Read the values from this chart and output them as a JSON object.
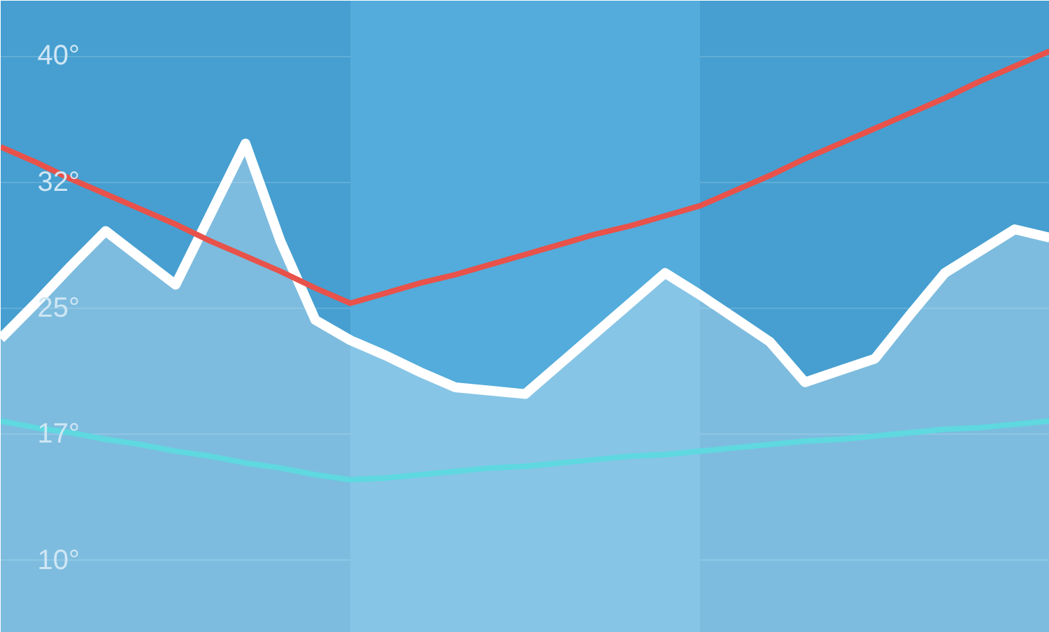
{
  "chart_data": {
    "type": "line",
    "ylim": [
      5.7,
      43.3
    ],
    "categories": [
      null,
      null,
      null,
      null,
      null,
      null,
      null,
      null,
      null,
      null,
      null,
      null,
      null,
      null,
      null,
      null,
      null,
      null,
      null,
      null,
      null,
      null,
      null,
      null,
      null,
      null,
      null,
      null,
      null,
      null,
      null
    ],
    "yticks": [
      {
        "value": 10,
        "label": "10°"
      },
      {
        "value": 17.5,
        "label": "17°"
      },
      {
        "value": 25,
        "label": "25°"
      },
      {
        "value": 32.5,
        "label": "32°"
      },
      {
        "value": 40,
        "label": "40°"
      }
    ],
    "tick_labels": "y",
    "grid": "y",
    "line_style": "solid",
    "series": [
      {
        "type": "area",
        "color": "#ffffff",
        "values": [
          23.2,
          25.3,
          27.5,
          29.6,
          28.0,
          26.4,
          30.6,
          34.8,
          29.0,
          24.3,
          23.1,
          22.2,
          21.2,
          20.3,
          20.1,
          19.9,
          21.7,
          23.5,
          25.3,
          27.1,
          25.8,
          24.4,
          23.0,
          20.6,
          21.3,
          22.0,
          24.6,
          27.1,
          28.4,
          29.7,
          29.2
        ]
      },
      {
        "color": "#e8524a",
        "values": [
          34.6,
          33.7,
          32.7,
          31.8,
          30.9,
          30.0,
          29.0,
          28.1,
          27.2,
          26.2,
          25.3,
          25.9,
          26.5,
          27.0,
          27.6,
          28.2,
          28.8,
          29.4,
          29.9,
          30.5,
          31.1,
          32.0,
          32.9,
          33.9,
          34.8,
          35.7,
          36.6,
          37.5,
          38.5,
          39.4,
          40.3
        ]
      },
      {
        "color": "#5fd8e0",
        "values": [
          18.3,
          17.9,
          17.6,
          17.2,
          16.9,
          16.5,
          16.2,
          15.8,
          15.5,
          15.1,
          14.8,
          14.9,
          15.1,
          15.3,
          15.5,
          15.6,
          15.8,
          16.0,
          16.2,
          16.3,
          16.5,
          16.7,
          16.9,
          17.1,
          17.2,
          17.4,
          17.6,
          17.8,
          17.9,
          18.1,
          18.3
        ]
      }
    ]
  }
}
